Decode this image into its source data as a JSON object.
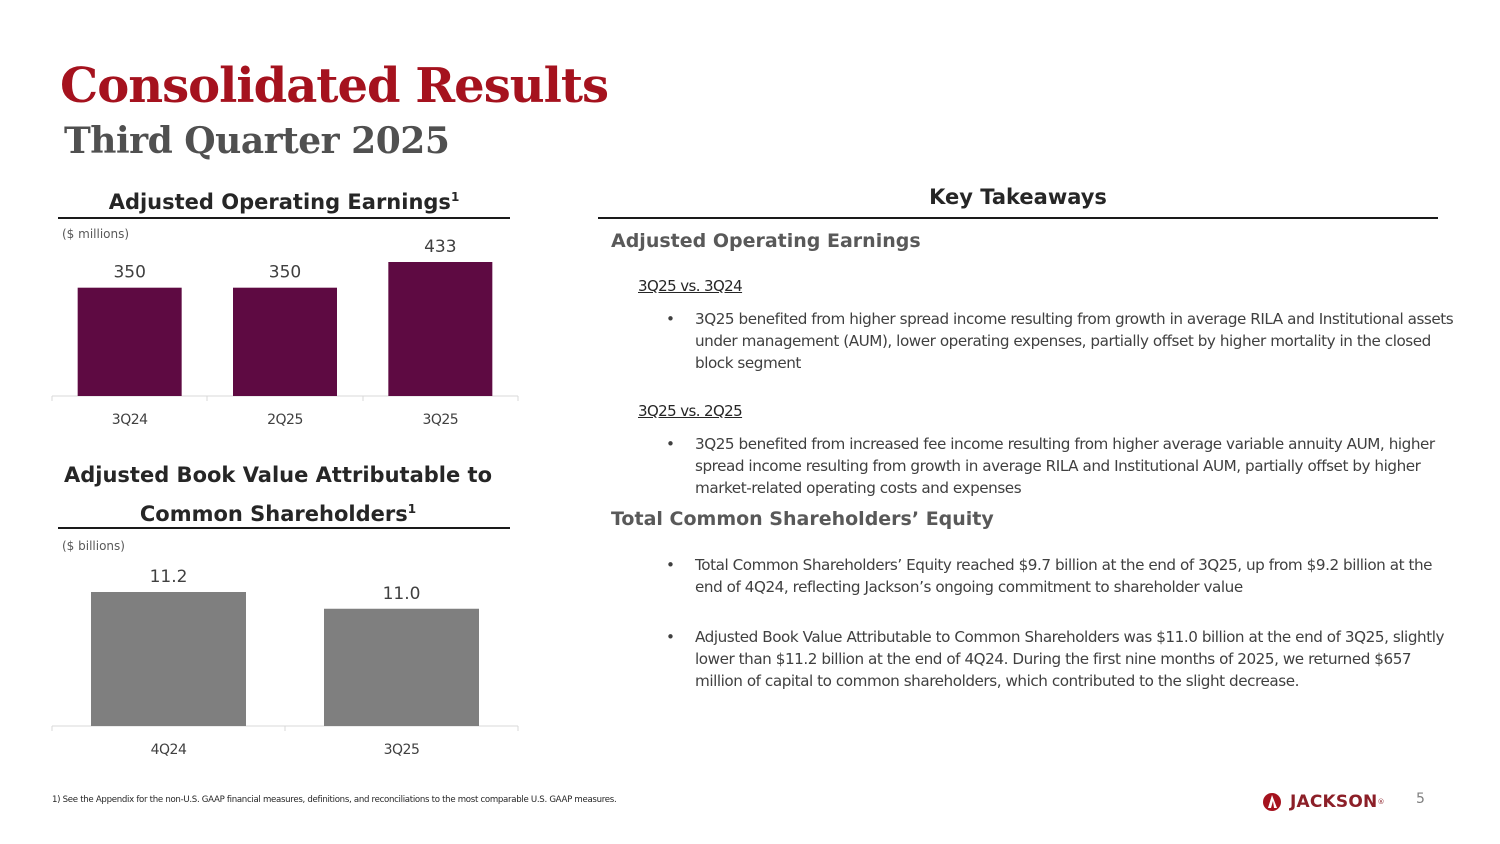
{
  "header": {
    "title": "Consolidated Results",
    "subtitle": "Third Quarter 2025"
  },
  "chart_data": [
    {
      "type": "bar",
      "title": "Adjusted Operating Earnings",
      "title_footnote": "1",
      "unit_label": "($ millions)",
      "categories": [
        "3Q24",
        "2Q25",
        "3Q25"
      ],
      "values": [
        350,
        350,
        433
      ],
      "value_labels": [
        "350",
        "350",
        "433"
      ],
      "ylim": [
        0,
        433
      ],
      "bar_color": "#5e0a42",
      "grid": false,
      "legend": "none"
    },
    {
      "type": "bar",
      "title": "Adjusted Book Value Attributable to Common Shareholders",
      "title_line1": "Adjusted Book Value Attributable to",
      "title_line2": "Common Shareholders",
      "title_footnote": "1",
      "unit_label": "($ billions)",
      "categories": [
        "4Q24",
        "3Q25"
      ],
      "values": [
        11.2,
        11.0
      ],
      "value_labels": [
        "11.2",
        "11.0"
      ],
      "ylim": [
        9.6,
        11.2
      ],
      "bar_color": "#7f7f7f",
      "grid": false,
      "legend": "none"
    }
  ],
  "takeaways": {
    "heading": "Key Takeaways",
    "aoe": {
      "heading": "Adjusted Operating Earnings",
      "comparisons": [
        {
          "label": "3Q25 vs. 3Q24",
          "bullets": [
            "3Q25 benefited from higher spread income resulting from growth in average RILA and Institutional assets under management (AUM), lower operating expenses, partially offset by higher mortality in the closed block segment"
          ]
        },
        {
          "label": "3Q25 vs. 2Q25",
          "bullets": [
            "3Q25 benefited from increased fee income resulting from higher average variable annuity AUM, higher spread income resulting from growth in average RILA and Institutional AUM, partially offset by higher market-related operating costs and expenses"
          ]
        }
      ]
    },
    "equity": {
      "heading": "Total Common Shareholders’ Equity",
      "bullets": [
        "Total Common Shareholders’ Equity reached $9.7 billion at the end of 3Q25, up from $9.2 billion at the end of 4Q24, reflecting Jackson’s ongoing commitment to shareholder value",
        "Adjusted Book Value Attributable to Common Shareholders was $11.0 billion at the end of 3Q25, slightly lower than $11.2 billion at the end of 4Q24.  During the first nine months of 2025, we returned $657 million of capital to common shareholders, which contributed to the slight decrease."
      ]
    }
  },
  "footer": {
    "footnote": "1) See the Appendix for the non-U.S. GAAP financial measures, definitions, and reconciliations to the most comparable U.S. GAAP measures.",
    "logo_text": "JACKSON",
    "logo_mark": "®",
    "page_number": "5",
    "brand_color": "#a5121e"
  },
  "bullet_char": "•"
}
